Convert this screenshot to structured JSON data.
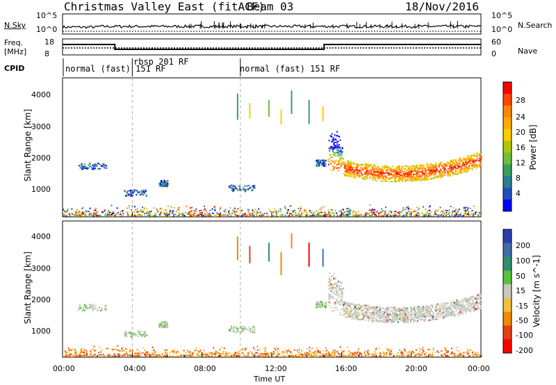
{
  "header": {
    "title": "Christmas Valley East (fitACF)",
    "beam": "Beam 03",
    "date": "18/Nov/2016"
  },
  "top_panels": {
    "nsky_label": "N.Sky",
    "nsearch_label": "N.Search",
    "freq_label": "Freq.",
    "freq_unit": "[MHz]",
    "nave_label": "Nave",
    "cpid_label": "CPID",
    "left_noise_ticks": [
      "10^5",
      "10^0"
    ],
    "right_noise_ticks": [
      "10^5",
      "10^0"
    ],
    "freq_ticks": [
      "18",
      "8"
    ],
    "nave_ticks": [
      "60",
      "0"
    ],
    "cpid_segments": [
      {
        "label": "normal (fast) 151 RF",
        "start_hour": 0
      },
      {
        "label": "rbsp 201 RF",
        "start_hour": 4
      },
      {
        "label": "normal (fast) 151 RF",
        "start_hour": 10
      }
    ]
  },
  "power_panel": {
    "ylabel": "Slant Range [km]",
    "yticks": [
      "4000",
      "3000",
      "2000",
      "1000"
    ],
    "colorbar_label": "Power [dB]",
    "colorbar_ticks": [
      "28",
      "24",
      "20",
      "16",
      "12",
      "8",
      "4"
    ],
    "colors": [
      "#ff0000",
      "#ff4400",
      "#ff8800",
      "#ffaa00",
      "#ffcc00",
      "#b0c800",
      "#6fbf3f",
      "#3b9e5f",
      "#2b7f8f",
      "#1f4fbf",
      "#0000ff"
    ]
  },
  "velocity_panel": {
    "ylabel": "Slant Range [km]",
    "yticks": [
      "4000",
      "3000",
      "2000",
      "1000"
    ],
    "colorbar_label": "Velocity [m s^-1]",
    "colorbar_ticks": [
      "200",
      "100",
      "50",
      "15",
      "-15",
      "-50",
      "-100",
      "-200"
    ],
    "colors": [
      "#2a3fb0",
      "#3e6fa8",
      "#2f8f6f",
      "#57c23a",
      "#c9c9c0",
      "#f0c040",
      "#f08a00",
      "#e84010",
      "#ff0000"
    ]
  },
  "xaxis": {
    "label": "Time UT",
    "ticks": [
      "00:00",
      "04:00",
      "08:00",
      "12:00",
      "16:00",
      "20:00",
      "00:00"
    ]
  },
  "chart_data": [
    {
      "type": "line",
      "title": "N.Sky / N.Search",
      "x_range_hours": [
        0,
        24
      ],
      "yscale": "log",
      "ylim": [
        1,
        100000
      ],
      "series": [
        {
          "name": "N.Sky",
          "x": [
            0,
            2,
            4,
            6,
            8,
            10,
            12,
            14,
            16,
            18,
            20,
            22,
            24
          ],
          "y": [
            5,
            6,
            6,
            7,
            8,
            7,
            9,
            8,
            7,
            6,
            7,
            8,
            9
          ]
        },
        {
          "name": "N.Search",
          "x": [
            0,
            24
          ],
          "y": [
            2,
            2
          ]
        }
      ]
    },
    {
      "type": "line",
      "title": "Freq. / Nave",
      "x_range_hours": [
        0,
        24
      ],
      "ylim": [
        8,
        18
      ],
      "series": [
        {
          "name": "Freq.",
          "x": [
            0,
            3,
            3,
            15,
            15,
            24
          ],
          "y": [
            14.5,
            14.5,
            11.5,
            11.5,
            14.5,
            14.5
          ]
        },
        {
          "name": "Nave",
          "x": [
            0,
            24
          ],
          "y": [
            12.5,
            12.5
          ]
        }
      ]
    },
    {
      "type": "heatmap",
      "title": "Power",
      "xlabel": "Time UT",
      "ylabel": "Slant Range [km]",
      "x_range_hours": [
        0,
        24
      ],
      "ylim": [
        200,
        4600
      ],
      "colorbar": {
        "label": "Power [dB]",
        "range": [
          0,
          30
        ]
      },
      "features": [
        {
          "start_hour": 15.2,
          "end_hour": 24,
          "range_start_km": 1400,
          "range_end_km": 2000,
          "dominant_value_db": 22
        },
        {
          "start_hour": 0,
          "end_hour": 24,
          "range_start_km": 200,
          "range_end_km": 450,
          "dominant_value_db": 12
        }
      ]
    },
    {
      "type": "heatmap",
      "title": "Velocity",
      "xlabel": "Time UT",
      "ylabel": "Slant Range [km]",
      "x_range_hours": [
        0,
        24
      ],
      "ylim": [
        200,
        4600
      ],
      "colorbar": {
        "label": "Velocity [m s^-1]",
        "range": [
          -200,
          200
        ]
      },
      "features": [
        {
          "start_hour": 15.2,
          "end_hour": 24,
          "range_start_km": 1400,
          "range_end_km": 2000,
          "dominant_value_ms": 0
        },
        {
          "start_hour": 0,
          "end_hour": 24,
          "range_start_km": 200,
          "range_end_km": 450,
          "dominant_value_ms": -40
        }
      ]
    }
  ]
}
